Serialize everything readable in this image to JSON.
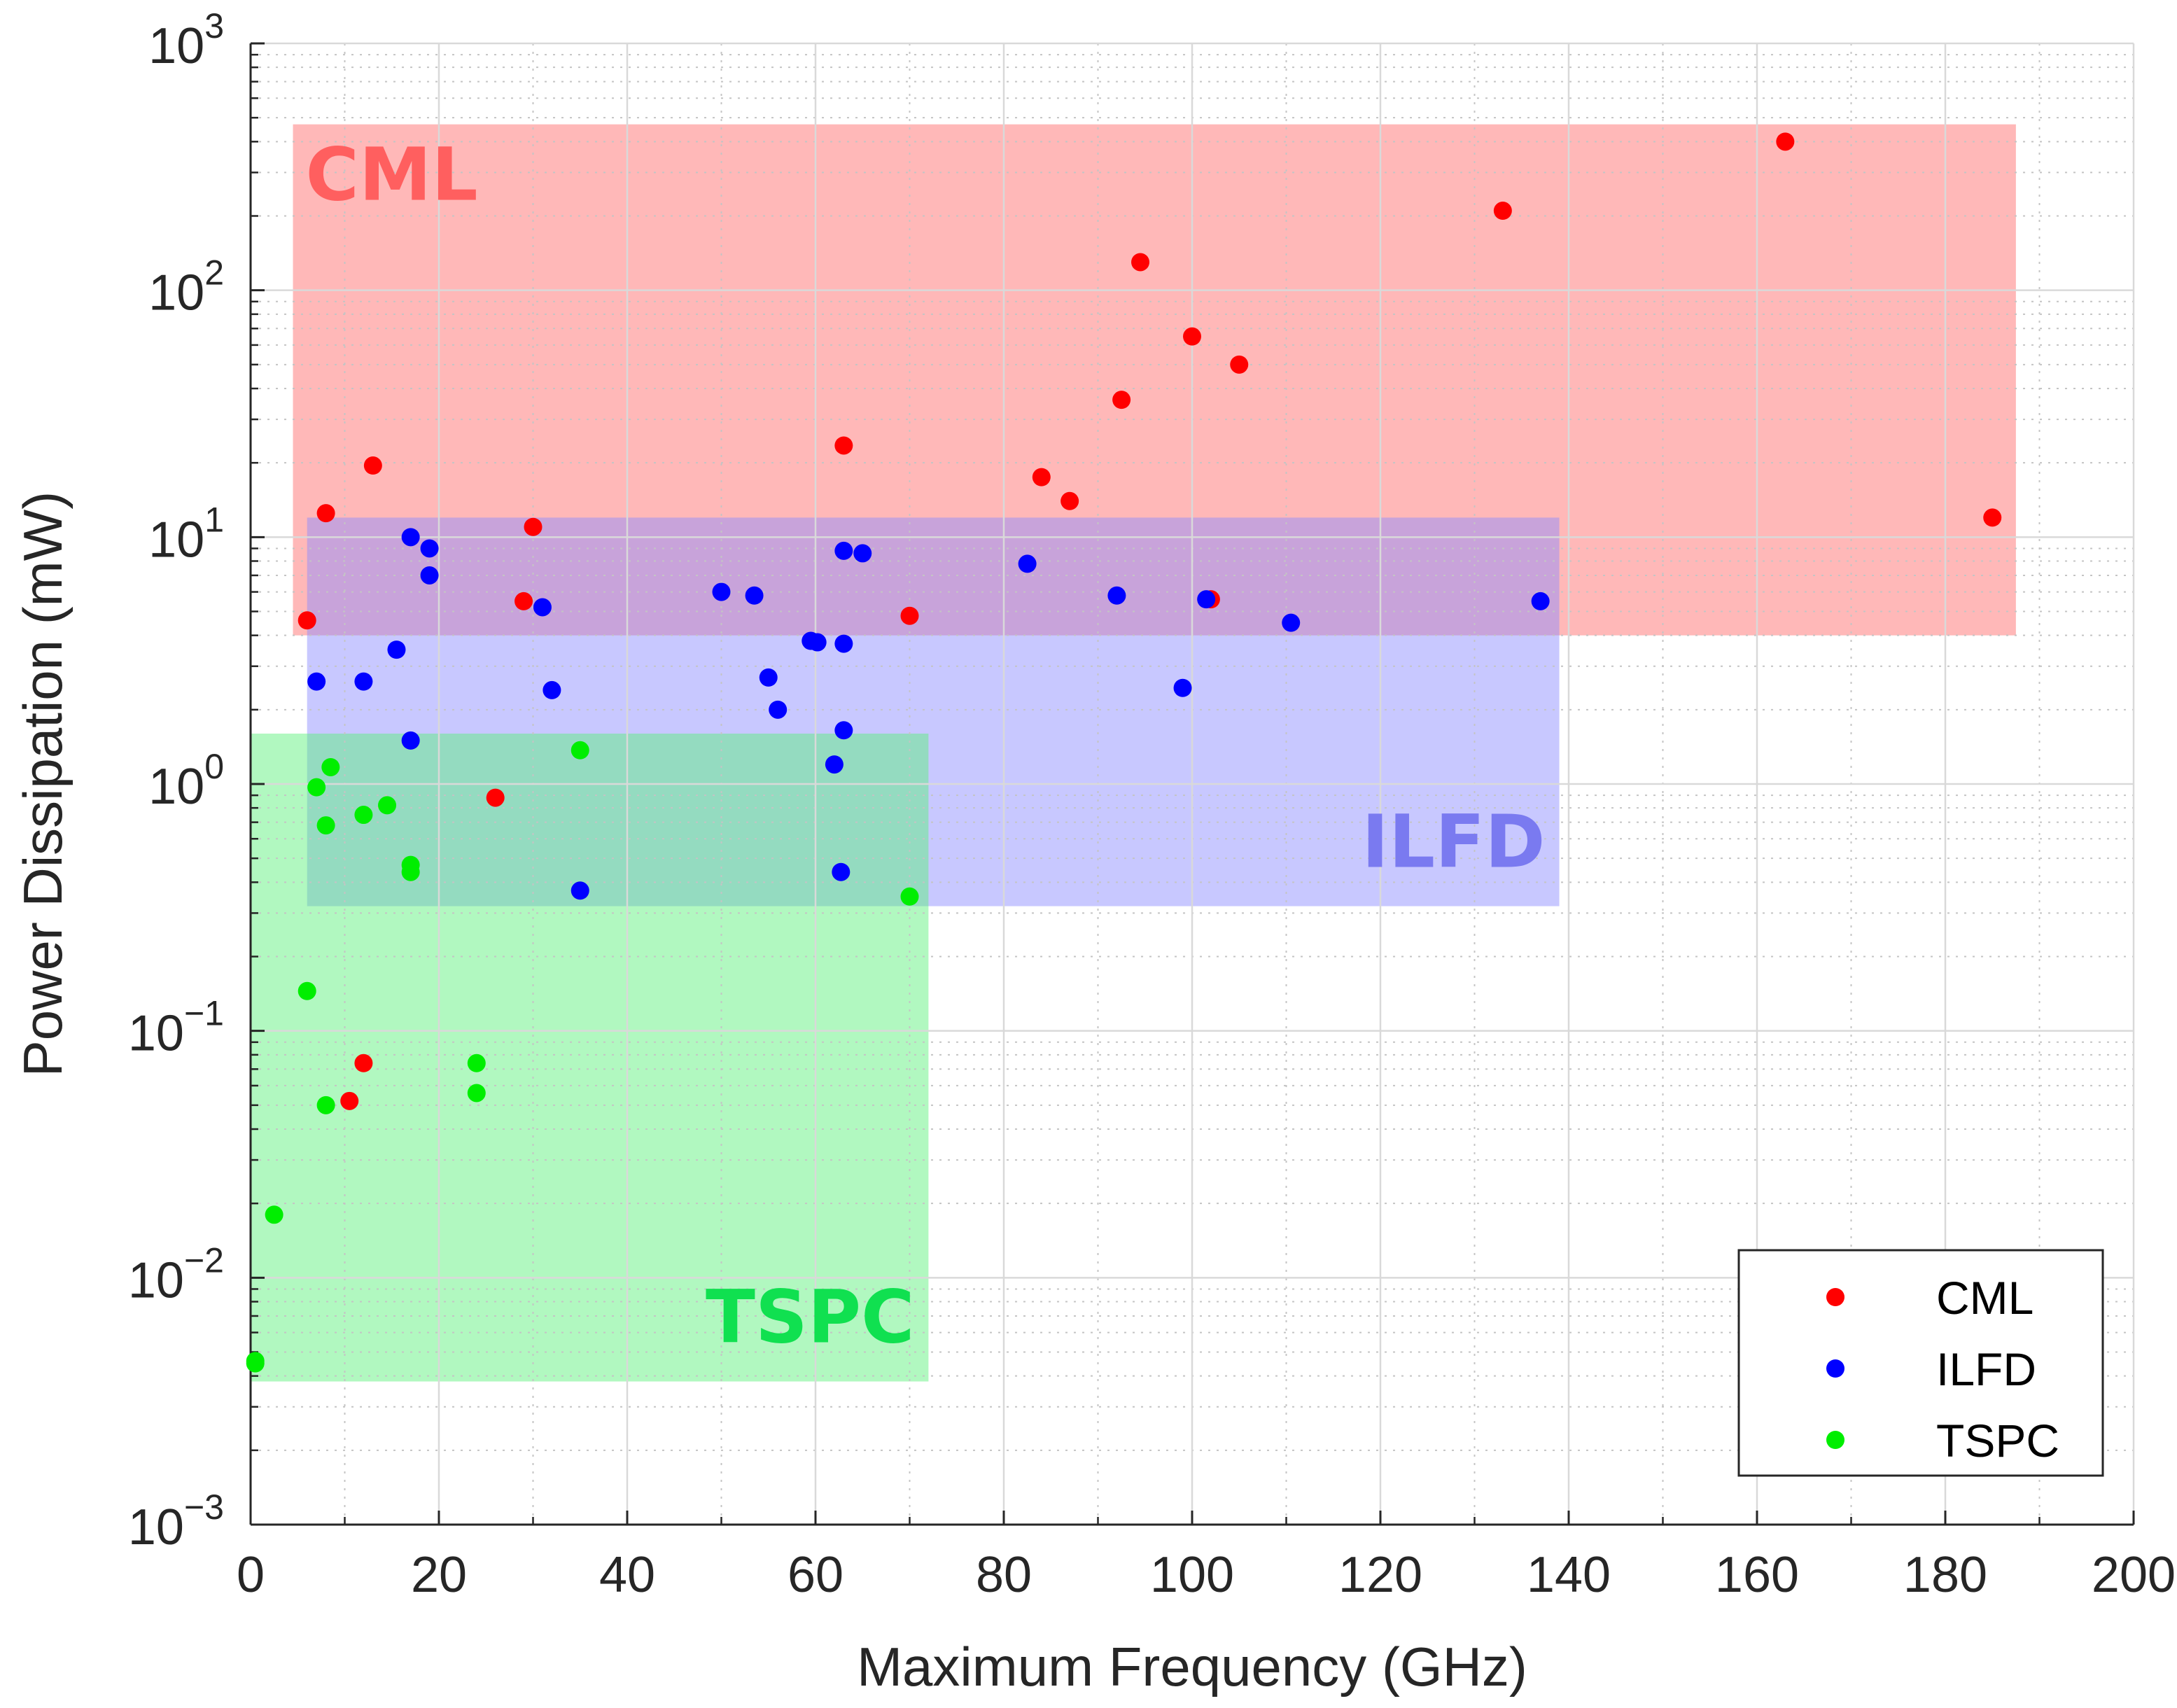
{
  "chart_data": {
    "type": "scatter",
    "x_scale": "linear",
    "y_scale": "log",
    "xlabel": "Maximum Frequency (GHz)",
    "ylabel": "Power Dissipation (mW)",
    "xlim": [
      0,
      200
    ],
    "ylim": [
      0.001,
      1000
    ],
    "x_ticks": [
      "0",
      "20",
      "40",
      "60",
      "80",
      "100",
      "120",
      "140",
      "160",
      "180",
      "200"
    ],
    "y_ticks": [
      {
        "base": "10",
        "exp": "−3",
        "value": 0.001
      },
      {
        "base": "10",
        "exp": "−2",
        "value": 0.01
      },
      {
        "base": "10",
        "exp": "−1",
        "value": 0.1
      },
      {
        "base": "10",
        "exp": "0",
        "value": 1
      },
      {
        "base": "10",
        "exp": "1",
        "value": 10
      },
      {
        "base": "10",
        "exp": "2",
        "value": 100
      },
      {
        "base": "10",
        "exp": "3",
        "value": 1000
      }
    ],
    "grid": true,
    "minor_grid": true,
    "legend_position": "bottom-right",
    "regions": [
      {
        "label": "CML",
        "x_range": [
          4.5,
          187.5
        ],
        "y_range": [
          4,
          470
        ],
        "fill": "#ff6b6b",
        "label_color": "#ff5f5f",
        "label_anchor": "top-left"
      },
      {
        "label": "ILFD",
        "x_range": [
          6,
          139
        ],
        "y_range": [
          0.32,
          12
        ],
        "fill": "#8c8cff",
        "label_color": "#7a7af0",
        "label_anchor": "bottom-right"
      },
      {
        "label": "TSPC",
        "x_range": [
          0,
          72
        ],
        "y_range": [
          0.0038,
          1.6
        ],
        "fill": "#5cf07c",
        "label_color": "#10e050",
        "label_anchor": "bottom-right"
      }
    ],
    "series": [
      {
        "name": "CML",
        "color": "#ff0000",
        "points": [
          [
            6,
            4.6
          ],
          [
            8,
            12.5
          ],
          [
            13,
            19.5
          ],
          [
            29,
            5.5
          ],
          [
            30,
            11
          ],
          [
            26,
            0.88
          ],
          [
            12,
            0.074
          ],
          [
            10.5,
            0.052
          ],
          [
            63,
            23.5
          ],
          [
            70,
            4.8
          ],
          [
            84,
            17.5
          ],
          [
            87,
            14
          ],
          [
            92.5,
            36
          ],
          [
            94.5,
            130
          ],
          [
            100,
            65
          ],
          [
            105,
            50
          ],
          [
            102,
            5.6
          ],
          [
            133,
            210
          ],
          [
            163,
            400
          ],
          [
            185,
            12
          ]
        ]
      },
      {
        "name": "ILFD",
        "color": "#0000ff",
        "points": [
          [
            7,
            2.6
          ],
          [
            12,
            2.6
          ],
          [
            15.5,
            3.5
          ],
          [
            17,
            1.5
          ],
          [
            17,
            10
          ],
          [
            19,
            9
          ],
          [
            19,
            7
          ],
          [
            31,
            5.2
          ],
          [
            32,
            2.4
          ],
          [
            35,
            0.37
          ],
          [
            50,
            6
          ],
          [
            53.5,
            5.8
          ],
          [
            55,
            2.7
          ],
          [
            56,
            2
          ],
          [
            59.5,
            3.8
          ],
          [
            60.2,
            3.75
          ],
          [
            62,
            1.2
          ],
          [
            62.7,
            0.44
          ],
          [
            63,
            3.7
          ],
          [
            63,
            1.65
          ],
          [
            63,
            8.8
          ],
          [
            65,
            8.6
          ],
          [
            82.5,
            7.8
          ],
          [
            92,
            5.8
          ],
          [
            99,
            2.45
          ],
          [
            101.5,
            5.6
          ],
          [
            110.5,
            4.5
          ],
          [
            137,
            5.5
          ]
        ]
      },
      {
        "name": "TSPC",
        "color": "#00ee00",
        "points": [
          [
            0.5,
            0.0045
          ],
          [
            0.5,
            0.0046
          ],
          [
            2.5,
            0.018
          ],
          [
            6,
            0.145
          ],
          [
            7,
            0.97
          ],
          [
            8,
            0.68
          ],
          [
            8,
            0.05
          ],
          [
            8.5,
            1.17
          ],
          [
            12,
            0.75
          ],
          [
            14.5,
            0.82
          ],
          [
            17,
            0.47
          ],
          [
            17,
            0.44
          ],
          [
            24,
            0.074
          ],
          [
            24,
            0.056
          ],
          [
            35,
            1.37
          ],
          [
            70,
            0.35
          ]
        ]
      }
    ]
  }
}
